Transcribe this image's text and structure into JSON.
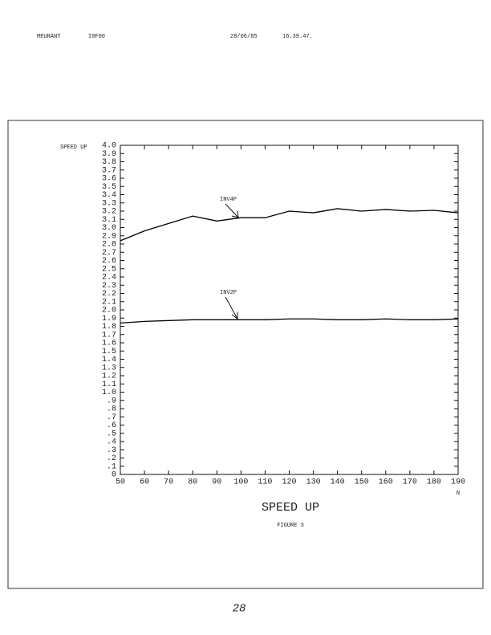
{
  "header": {
    "author": "MEURANT",
    "code": "I0F00",
    "date": "28/06/85",
    "time": "16.39.47."
  },
  "chart_data": {
    "type": "line",
    "title": "SPEED UP",
    "subtitle": "FIGURE 3",
    "y_label": "SPEED UP",
    "x_label": "N",
    "x": [
      50,
      60,
      70,
      80,
      90,
      100,
      110,
      120,
      130,
      140,
      150,
      160,
      170,
      180,
      190
    ],
    "series": [
      {
        "name": "INV4P",
        "color": "#000000",
        "values": [
          2.84,
          2.96,
          3.05,
          3.14,
          3.08,
          3.12,
          3.12,
          3.2,
          3.18,
          3.23,
          3.2,
          3.22,
          3.2,
          3.21,
          3.18
        ]
      },
      {
        "name": "INV2P",
        "color": "#000000",
        "values": [
          1.84,
          1.86,
          1.87,
          1.88,
          1.88,
          1.88,
          1.88,
          1.89,
          1.89,
          1.88,
          1.88,
          1.89,
          1.88,
          1.88,
          1.89
        ]
      }
    ],
    "xlim": [
      50,
      190
    ],
    "xticks": [
      50,
      60,
      70,
      80,
      90,
      100,
      110,
      120,
      130,
      140,
      150,
      160,
      170,
      180,
      190
    ],
    "ylim": [
      0,
      4
    ],
    "yticks": [
      0,
      {
        "value": 0.1,
        "label": ".1"
      },
      {
        "value": 0.2,
        "label": ".2"
      },
      {
        "value": 0.3,
        "label": ".3"
      },
      {
        "value": 0.4,
        "label": ".4"
      },
      {
        "value": 0.5,
        "label": ".5"
      },
      {
        "value": 0.6,
        "label": ".6"
      },
      {
        "value": 0.7,
        "label": ".7"
      },
      {
        "value": 0.8,
        "label": ".8"
      },
      {
        "value": 0.9,
        "label": ".9"
      },
      {
        "value": 1,
        "label": "1.0"
      },
      1.1,
      1.2,
      1.3,
      1.4,
      1.5,
      1.6,
      1.7,
      1.8,
      1.9,
      {
        "value": 2,
        "label": "2.0"
      },
      2.1,
      2.2,
      2.3,
      2.4,
      2.5,
      2.6,
      2.7,
      2.8,
      2.9,
      {
        "value": 3,
        "label": "3.0"
      },
      3.1,
      3.2,
      3.3,
      3.4,
      3.5,
      3.6,
      3.7,
      3.8,
      3.9,
      {
        "value": 4,
        "label": "4.0"
      }
    ],
    "grid": false
  },
  "footer": {
    "page": "28"
  }
}
